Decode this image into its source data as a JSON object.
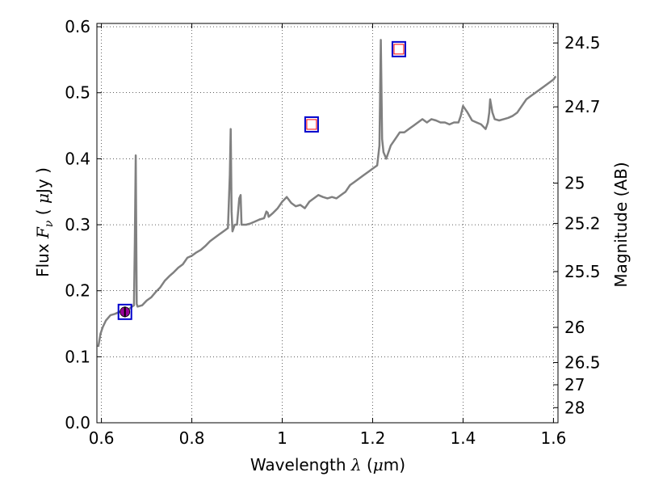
{
  "chart_data": {
    "type": "line",
    "xlabel": "Wavelength  λ (μm)",
    "xlabel_parts": [
      "Wavelength  ",
      "λ",
      " (",
      "μ",
      "m)"
    ],
    "ylabel": "Flux  Fν  ( μJy )",
    "ylabel_parts": [
      "Flux  ",
      "F",
      "ν",
      "  ( ",
      "μ",
      "Jy )"
    ],
    "y2label": "Magnitude (AB)",
    "xlim": [
      0.59,
      1.61
    ],
    "ylim": [
      0.0,
      0.605
    ],
    "grid": true,
    "x_ticks": [
      0.6,
      0.8,
      1.0,
      1.2,
      1.4,
      1.6
    ],
    "x_tick_labels": [
      "0.6",
      "0.8",
      "1",
      "1.2",
      "1.4",
      "1.6"
    ],
    "y_ticks": [
      0.0,
      0.1,
      0.2,
      0.3,
      0.4,
      0.5,
      0.6
    ],
    "y_tick_labels": [
      "0.0",
      "0.1",
      "0.2",
      "0.3",
      "0.4",
      "0.5",
      "0.6"
    ],
    "mag_ticks": [
      24.5,
      24.7,
      25,
      25.2,
      25.5,
      26,
      26.5,
      27,
      28
    ],
    "mag_tick_labels": [
      "24.5",
      "24.7",
      "25",
      "25.2",
      "25.5",
      "26",
      "26.5",
      "27",
      "28"
    ],
    "series": [
      {
        "color": "#808080",
        "x": [
          0.593,
          0.598,
          0.603,
          0.61,
          0.62,
          0.63,
          0.64,
          0.65,
          0.66,
          0.668,
          0.672,
          0.674,
          0.676,
          0.678,
          0.68,
          0.69,
          0.7,
          0.71,
          0.72,
          0.73,
          0.74,
          0.75,
          0.76,
          0.77,
          0.78,
          0.79,
          0.8,
          0.81,
          0.82,
          0.83,
          0.84,
          0.85,
          0.86,
          0.87,
          0.88,
          0.884,
          0.886,
          0.888,
          0.89,
          0.895,
          0.9,
          0.905,
          0.908,
          0.91,
          0.913,
          0.92,
          0.93,
          0.94,
          0.95,
          0.96,
          0.965,
          0.968,
          0.97,
          0.98,
          0.99,
          1.0,
          1.01,
          1.02,
          1.03,
          1.04,
          1.05,
          1.06,
          1.07,
          1.08,
          1.09,
          1.1,
          1.11,
          1.12,
          1.13,
          1.14,
          1.15,
          1.16,
          1.17,
          1.18,
          1.19,
          1.2,
          1.21,
          1.215,
          1.218,
          1.221,
          1.224,
          1.227,
          1.23,
          1.24,
          1.25,
          1.26,
          1.27,
          1.28,
          1.29,
          1.3,
          1.31,
          1.32,
          1.33,
          1.34,
          1.35,
          1.36,
          1.37,
          1.38,
          1.39,
          1.395,
          1.4,
          1.41,
          1.42,
          1.43,
          1.44,
          1.45,
          1.455,
          1.458,
          1.46,
          1.465,
          1.47,
          1.48,
          1.49,
          1.5,
          1.51,
          1.52,
          1.53,
          1.54,
          1.55,
          1.56,
          1.57,
          1.58,
          1.59,
          1.6,
          1.605
        ],
        "y": [
          0.115,
          0.135,
          0.145,
          0.155,
          0.163,
          0.165,
          0.168,
          0.168,
          0.172,
          0.176,
          0.178,
          0.275,
          0.405,
          0.18,
          0.176,
          0.178,
          0.185,
          0.19,
          0.198,
          0.205,
          0.215,
          0.222,
          0.228,
          0.235,
          0.24,
          0.25,
          0.253,
          0.258,
          0.262,
          0.268,
          0.275,
          0.28,
          0.285,
          0.29,
          0.295,
          0.375,
          0.445,
          0.32,
          0.29,
          0.3,
          0.3,
          0.34,
          0.345,
          0.3,
          0.3,
          0.3,
          0.302,
          0.305,
          0.308,
          0.31,
          0.32,
          0.318,
          0.312,
          0.318,
          0.325,
          0.335,
          0.342,
          0.333,
          0.328,
          0.33,
          0.325,
          0.335,
          0.34,
          0.345,
          0.342,
          0.34,
          0.342,
          0.34,
          0.345,
          0.35,
          0.36,
          0.365,
          0.37,
          0.375,
          0.38,
          0.385,
          0.39,
          0.42,
          0.58,
          0.43,
          0.41,
          0.405,
          0.4,
          0.42,
          0.43,
          0.44,
          0.44,
          0.445,
          0.45,
          0.455,
          0.46,
          0.455,
          0.46,
          0.458,
          0.455,
          0.455,
          0.452,
          0.455,
          0.455,
          0.465,
          0.48,
          0.47,
          0.458,
          0.455,
          0.452,
          0.445,
          0.455,
          0.47,
          0.49,
          0.47,
          0.46,
          0.458,
          0.46,
          0.462,
          0.465,
          0.47,
          0.48,
          0.49,
          0.495,
          0.5,
          0.505,
          0.51,
          0.515,
          0.52,
          0.525
        ]
      }
    ],
    "markers": [
      {
        "type": "filled-circle",
        "x": 0.652,
        "y": 0.168,
        "err": 0.008,
        "color": "#990099"
      },
      {
        "type": "square",
        "x": 0.652,
        "y": 0.168,
        "color": "#0000cc"
      },
      {
        "type": "square",
        "x": 1.065,
        "y": 0.452,
        "color": "#0000cc"
      },
      {
        "type": "square",
        "x": 1.258,
        "y": 0.566,
        "color": "#0000cc"
      },
      {
        "type": "small-square",
        "x": 1.065,
        "y": 0.452,
        "color": "#ff0000"
      },
      {
        "type": "small-square",
        "x": 1.258,
        "y": 0.566,
        "color": "#ff0000"
      }
    ]
  }
}
